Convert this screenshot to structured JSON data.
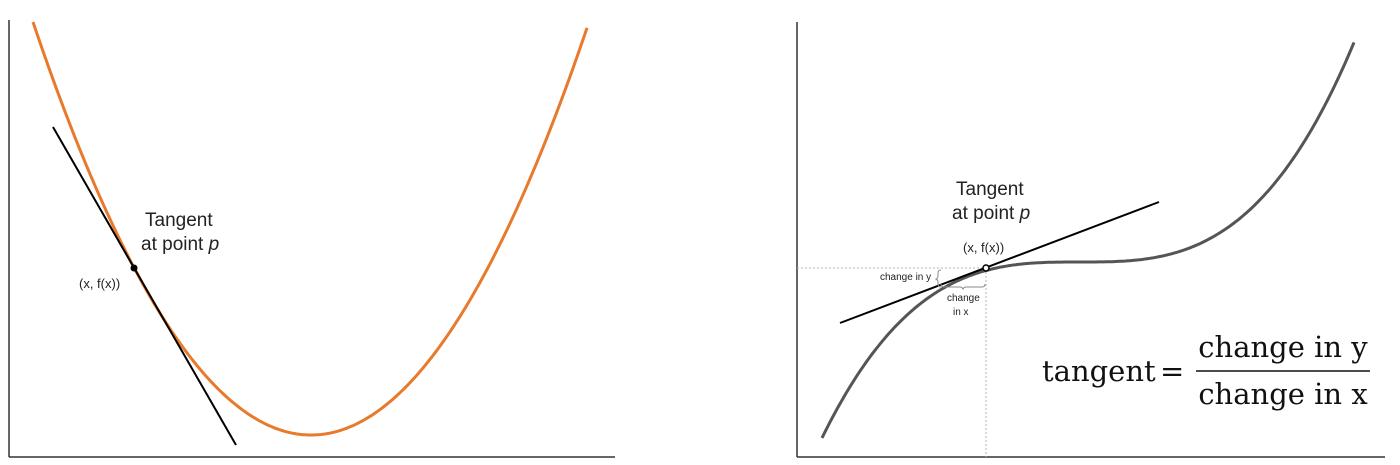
{
  "colors": {
    "parabola": "#e87a2c",
    "cubic": "#555555",
    "tangent_line": "#000000",
    "axis": "#333333",
    "guide": "#b5b5b5"
  },
  "left_panel": {
    "tangent_label_line1": "Tangent",
    "tangent_label_line2_prefix": "at point ",
    "tangent_label_line2_var": "p",
    "point_label": "(x, f(x))"
  },
  "right_panel": {
    "tangent_label_line1": "Tangent",
    "tangent_label_line2_prefix": "at point ",
    "tangent_label_line2_var": "p",
    "point_label": "(x, f(x))",
    "change_in_y_label": "change in y",
    "change_in_x_label_line1": "change",
    "change_in_x_label_line2": "in x",
    "formula": {
      "lhs": "tangent",
      "equals": "=",
      "numerator": "change in y",
      "denominator": "change in x"
    }
  }
}
